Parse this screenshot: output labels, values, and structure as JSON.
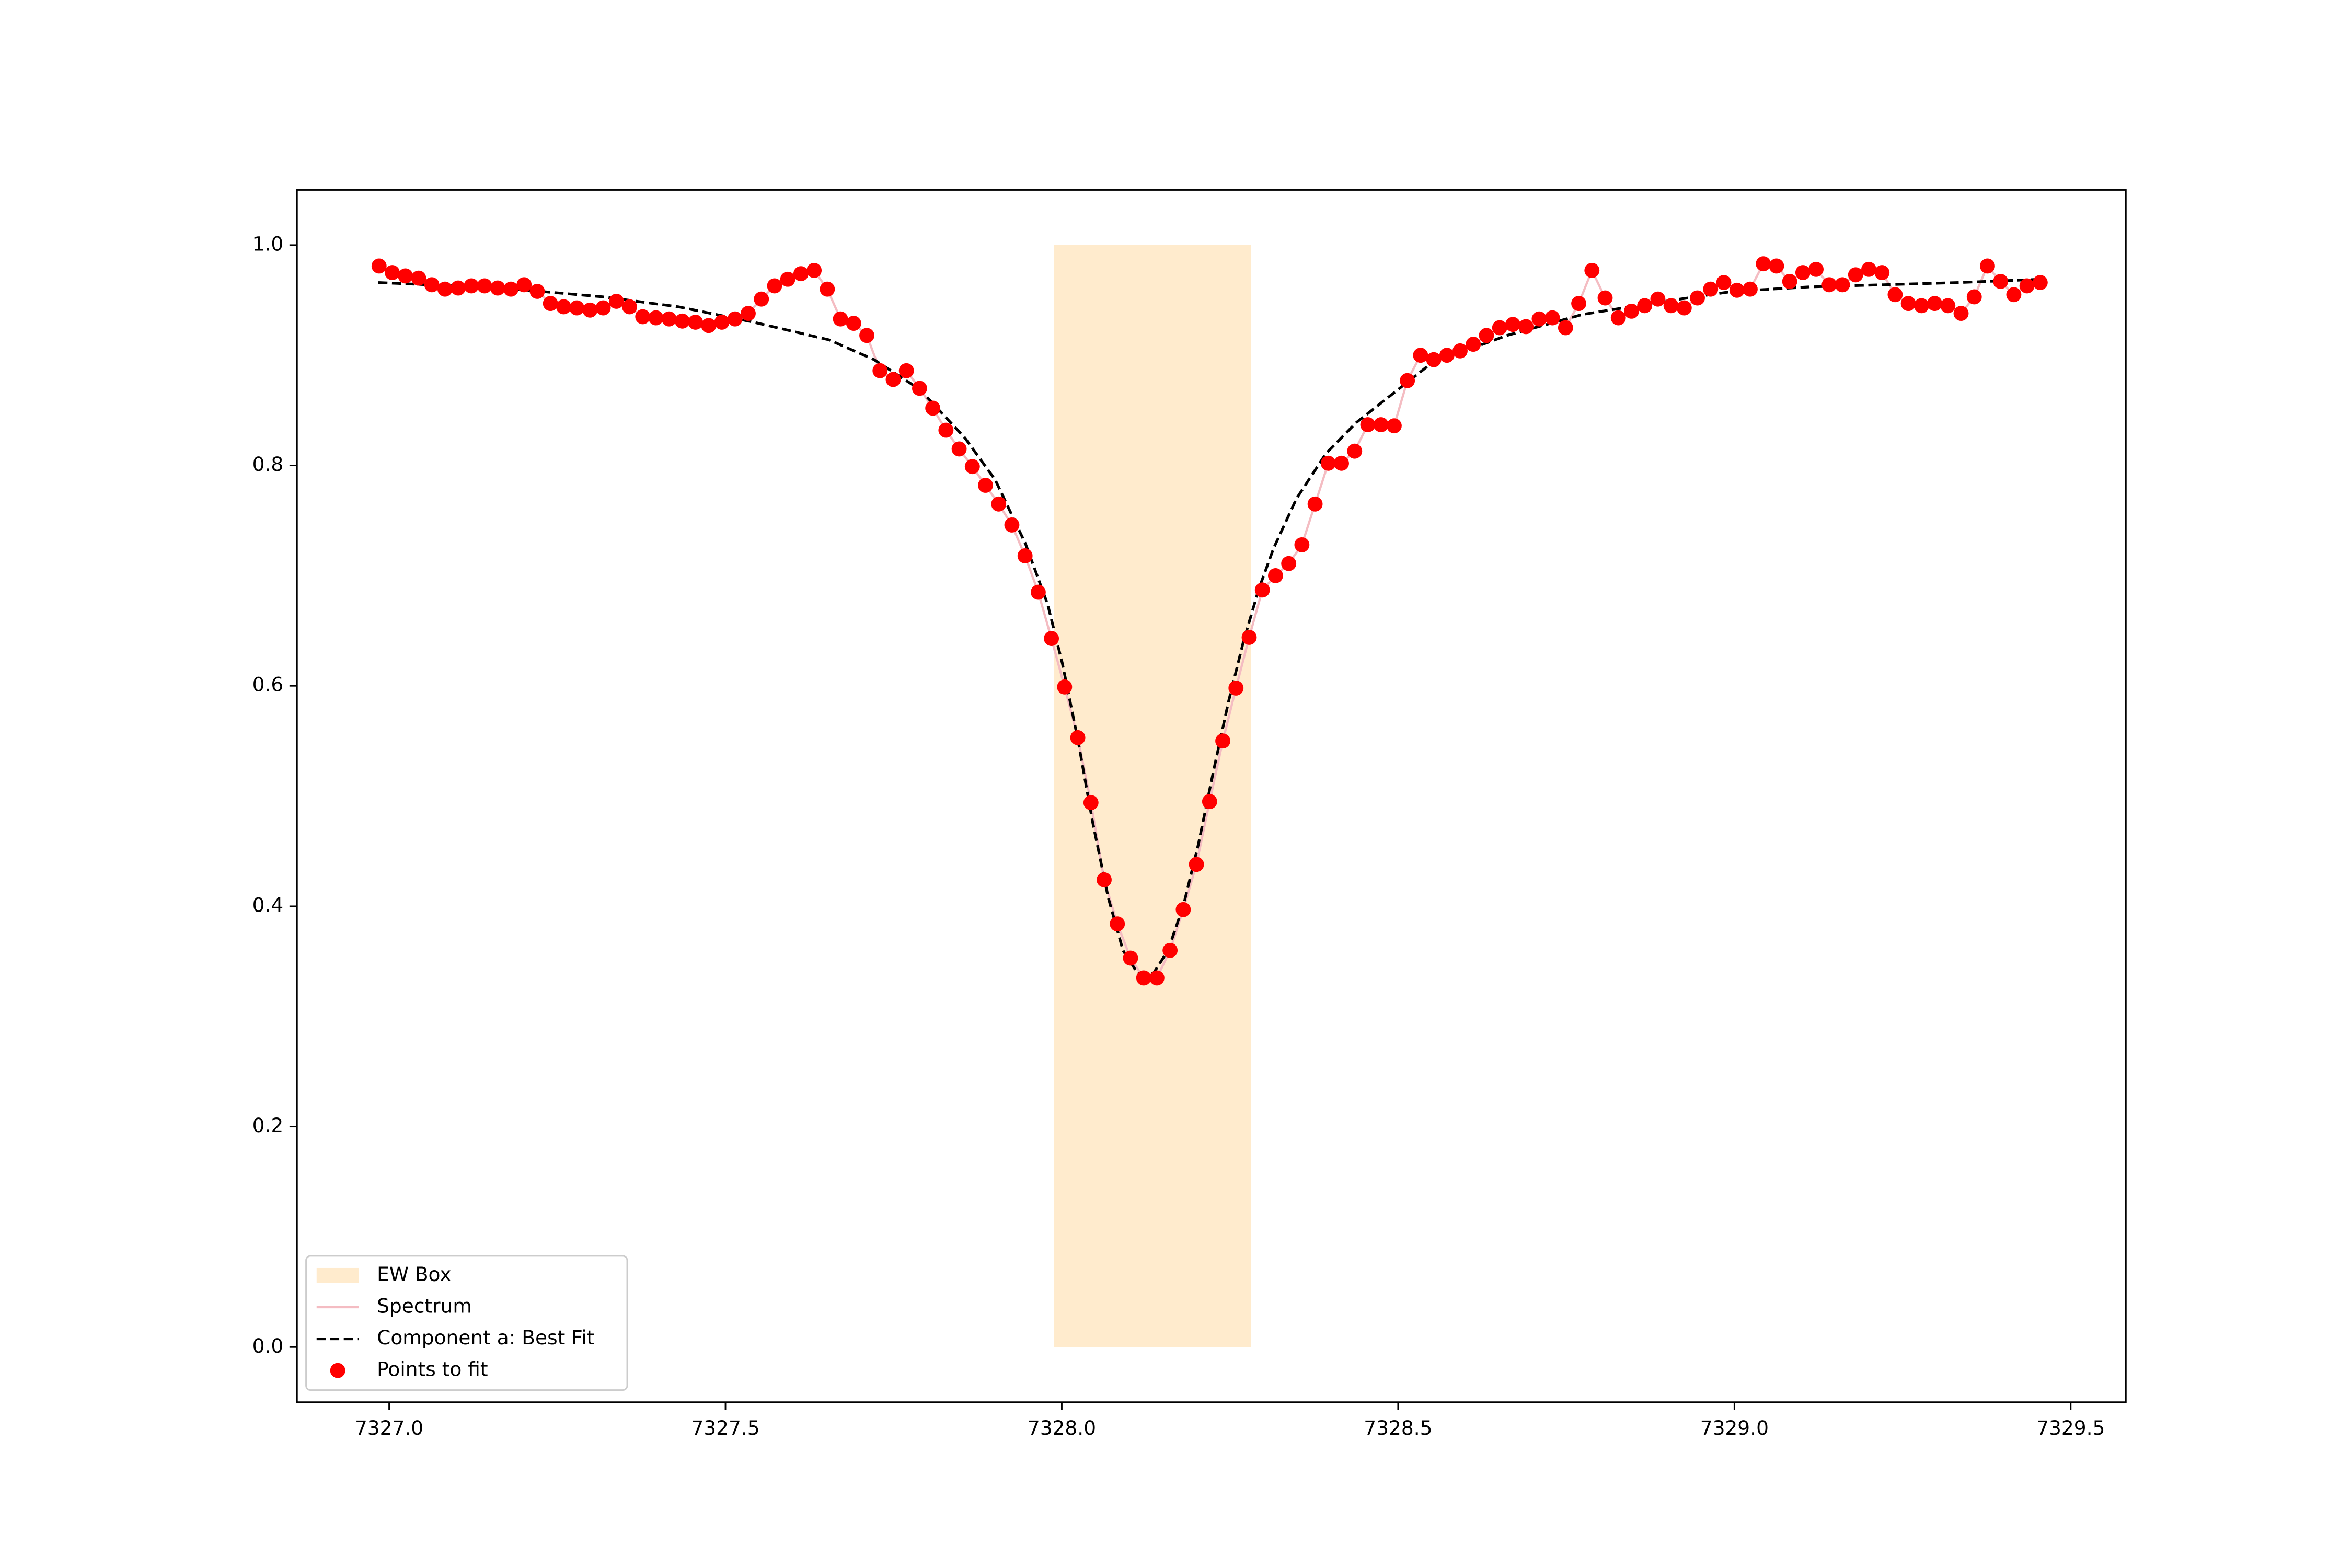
{
  "chart_data": {
    "type": "line",
    "xlim": [
      7326.863,
      7329.582
    ],
    "ylim": [
      -0.05,
      1.05
    ],
    "xticks": [
      {
        "value": 7327,
        "label": "7327.0"
      },
      {
        "value": 7327.5,
        "label": "7327.5"
      },
      {
        "value": 7328,
        "label": "7328.0"
      },
      {
        "value": 7328.5,
        "label": "7328.5"
      },
      {
        "value": 7329,
        "label": "7329.0"
      },
      {
        "value": 7329.5,
        "label": "7329.5"
      }
    ],
    "yticks": [
      {
        "value": 0,
        "label": "0.0"
      },
      0.2,
      0.4,
      0.6,
      0.8,
      {
        "value": 1,
        "label": "1.0"
      }
    ],
    "grid": false,
    "legend": "lower left",
    "series": [
      {
        "name": "EW Box",
        "kind": "span",
        "color": "#ffebcd",
        "x": [
          7327.988,
          7328.281
        ],
        "values": [
          0,
          1
        ]
      },
      {
        "name": "Spectrum",
        "kind": "line",
        "color": "#f4bcc2"
      },
      {
        "name": "Component a: Best Fit",
        "kind": "dashed",
        "color": "#000000",
        "x": [
          7326.984,
          7327.094,
          7327.206,
          7327.318,
          7327.43,
          7327.542,
          7327.654,
          7327.721,
          7327.789,
          7327.856,
          7327.901,
          7327.946,
          7327.979,
          7328.001,
          7328.024,
          7328.046,
          7328.069,
          7328.091,
          7328.113,
          7328.136,
          7328.158,
          7328.181,
          7328.203,
          7328.226,
          7328.248,
          7328.27,
          7328.293,
          7328.315,
          7328.349,
          7328.393,
          7328.438,
          7328.494,
          7328.55,
          7328.662,
          7328.774,
          7328.886,
          7328.998,
          7329.11,
          7329.222,
          7329.334,
          7329.457
        ],
        "values": [
          0.966,
          0.963,
          0.959,
          0.953,
          0.944,
          0.93,
          0.914,
          0.896,
          0.869,
          0.825,
          0.787,
          0.729,
          0.674,
          0.62,
          0.551,
          0.476,
          0.408,
          0.36,
          0.339,
          0.339,
          0.36,
          0.401,
          0.456,
          0.524,
          0.586,
          0.64,
          0.688,
          0.725,
          0.77,
          0.811,
          0.839,
          0.866,
          0.893,
          0.918,
          0.937,
          0.948,
          0.958,
          0.962,
          0.964,
          0.966,
          0.969
        ]
      },
      {
        "name": "Points to fit",
        "kind": "scatter",
        "color": "#ff0000",
        "x": [
          7326.985,
          7327.0046,
          7327.0242,
          7327.0438,
          7327.0634,
          7327.083,
          7327.1026,
          7327.1222,
          7327.1418,
          7327.1614,
          7327.181,
          7327.2006,
          7327.2202,
          7327.2398,
          7327.2594,
          7327.279,
          7327.2986,
          7327.3182,
          7327.3378,
          7327.3574,
          7327.377,
          7327.3966,
          7327.4162,
          7327.4358,
          7327.4554,
          7327.475,
          7327.4946,
          7327.5142,
          7327.5338,
          7327.5534,
          7327.573,
          7327.5926,
          7327.6122,
          7327.6318,
          7327.6514,
          7327.671,
          7327.6906,
          7327.7102,
          7327.7298,
          7327.7494,
          7327.769,
          7327.7886,
          7327.8082,
          7327.8278,
          7327.8474,
          7327.867,
          7327.8866,
          7327.9062,
          7327.9258,
          7327.9454,
          7327.965,
          7327.9846,
          7328.0042,
          7328.0238,
          7328.0434,
          7328.063,
          7328.0826,
          7328.1022,
          7328.1218,
          7328.1414,
          7328.161,
          7328.1806,
          7328.2002,
          7328.2198,
          7328.2394,
          7328.259,
          7328.2786,
          7328.2982,
          7328.3178,
          7328.3374,
          7328.357,
          7328.3766,
          7328.3962,
          7328.4158,
          7328.4354,
          7328.455,
          7328.4746,
          7328.4942,
          7328.5138,
          7328.5334,
          7328.553,
          7328.5726,
          7328.5922,
          7328.6118,
          7328.6314,
          7328.651,
          7328.6706,
          7328.6902,
          7328.7098,
          7328.7294,
          7328.749,
          7328.7686,
          7328.7882,
          7328.8078,
          7328.8274,
          7328.847,
          7328.8666,
          7328.8862,
          7328.9058,
          7328.9254,
          7328.945,
          7328.9646,
          7328.9842,
          7329.0038,
          7329.0234,
          7329.043,
          7329.0626,
          7329.0822,
          7329.1018,
          7329.1214,
          7329.141,
          7329.1606,
          7329.1802,
          7329.1998,
          7329.2194,
          7329.239,
          7329.2586,
          7329.2782,
          7329.2978,
          7329.3174,
          7329.337,
          7329.3566,
          7329.3762,
          7329.3958,
          7329.4154,
          7329.435,
          7329.4546
        ],
        "values": [
          0.981,
          0.975,
          0.972,
          0.97,
          0.964,
          0.96,
          0.961,
          0.963,
          0.963,
          0.961,
          0.96,
          0.964,
          0.958,
          0.947,
          0.944,
          0.943,
          0.941,
          0.943,
          0.949,
          0.944,
          0.935,
          0.934,
          0.933,
          0.931,
          0.93,
          0.927,
          0.93,
          0.933,
          0.938,
          0.951,
          0.963,
          0.969,
          0.974,
          0.977,
          0.96,
          0.933,
          0.929,
          0.918,
          0.886,
          0.878,
          0.886,
          0.87,
          0.852,
          0.832,
          0.815,
          0.799,
          0.782,
          0.765,
          0.746,
          0.718,
          0.685,
          0.643,
          0.599,
          0.553,
          0.494,
          0.424,
          0.384,
          0.353,
          0.335,
          0.335,
          0.36,
          0.397,
          0.438,
          0.495,
          0.55,
          0.598,
          0.644,
          0.687,
          0.7,
          0.711,
          0.728,
          0.765,
          0.802,
          0.802,
          0.813,
          0.837,
          0.837,
          0.836,
          0.877,
          0.9,
          0.896,
          0.9,
          0.904,
          0.91,
          0.918,
          0.925,
          0.928,
          0.926,
          0.933,
          0.934,
          0.925,
          0.947,
          0.977,
          0.952,
          0.934,
          0.94,
          0.945,
          0.951,
          0.945,
          0.943,
          0.952,
          0.96,
          0.966,
          0.959,
          0.96,
          0.983,
          0.981,
          0.967,
          0.975,
          0.978,
          0.964,
          0.964,
          0.973,
          0.978,
          0.975,
          0.955,
          0.947,
          0.945,
          0.947,
          0.945,
          0.938,
          0.953,
          0.981,
          0.967,
          0.955,
          0.963,
          0.966
        ]
      }
    ]
  }
}
